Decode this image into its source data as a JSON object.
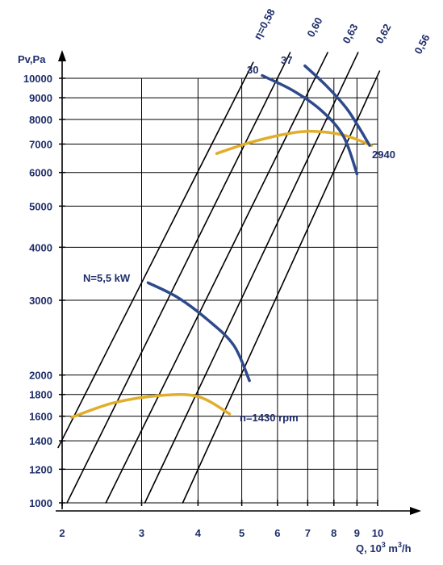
{
  "chart_data": {
    "type": "line",
    "title": "",
    "xlabel": "Q, 10",
    "xlabel_exp": "3",
    "xlabel_tail": " m",
    "xlabel_exp2": "3",
    "xlabel_end": "/h",
    "ylabel": "Pv,Pa",
    "x_scale": "log",
    "y_scale": "log",
    "xlim": [
      2,
      10
    ],
    "ylim": [
      1000,
      10000
    ],
    "x_ticks": [
      2,
      3,
      4,
      5,
      6,
      7,
      8,
      9,
      10
    ],
    "y_ticks": [
      1000,
      1200,
      1400,
      1600,
      1800,
      2000,
      3000,
      4000,
      5000,
      6000,
      7000,
      8000,
      9000,
      10000
    ],
    "grid": true,
    "efficiency_labels": [
      "η=0,58",
      "0,60",
      "0,63",
      "0,62",
      "0,56"
    ],
    "power_labels": {
      "high_30": "30",
      "high_37": "37",
      "low": "N=5,5 kW"
    },
    "speed_labels": {
      "high": "2940",
      "low": "n=1430 rpm"
    },
    "colors": {
      "axis": "#000000",
      "grid": "#000000",
      "power_curve": "#2e4a8c",
      "pressure_curve": "#e0ae2a",
      "text": "#1f2e6b"
    },
    "series": [
      {
        "name": "",
        "kind": "pressure",
        "points": [
          [
            4.4,
            6650
          ],
          [
            5.2,
            7050
          ],
          [
            6.3,
            7400
          ],
          [
            7.2,
            7500
          ],
          [
            8.4,
            7350
          ],
          [
            9.7,
            6950
          ]
        ]
      },
      {
        "name": "",
        "kind": "pressure",
        "points": [
          [
            2.1,
            1590
          ],
          [
            2.6,
            1720
          ],
          [
            3.3,
            1790
          ],
          [
            4.0,
            1780
          ],
          [
            4.7,
            1620
          ]
        ]
      },
      {
        "name": "",
        "kind": "power",
        "points": [
          [
            5.55,
            10150
          ],
          [
            6.5,
            9350
          ],
          [
            7.5,
            8400
          ],
          [
            8.4,
            7300
          ],
          [
            9.0,
            5950
          ]
        ]
      },
      {
        "name": "",
        "kind": "power",
        "points": [
          [
            6.9,
            10700
          ],
          [
            7.7,
            9600
          ],
          [
            8.6,
            8400
          ],
          [
            9.6,
            6950
          ]
        ]
      },
      {
        "name": "",
        "kind": "power",
        "points": [
          [
            3.1,
            3300
          ],
          [
            3.6,
            3050
          ],
          [
            4.2,
            2700
          ],
          [
            4.8,
            2350
          ],
          [
            5.2,
            1940
          ]
        ]
      },
      {
        "name": "",
        "kind": "efficiency",
        "points": [
          [
            1.96,
            1350
          ],
          [
            5.3,
            10900
          ]
        ]
      },
      {
        "name": "",
        "kind": "efficiency",
        "points": [
          [
            2.05,
            1000
          ],
          [
            6.4,
            11500
          ]
        ]
      },
      {
        "name": "",
        "kind": "efficiency",
        "points": [
          [
            2.5,
            1000
          ],
          [
            7.75,
            11500
          ]
        ]
      },
      {
        "name": "",
        "kind": "efficiency",
        "points": [
          [
            3.05,
            1000
          ],
          [
            9.05,
            11500
          ]
        ]
      },
      {
        "name": "",
        "kind": "efficiency",
        "points": [
          [
            3.7,
            1000
          ],
          [
            10.1,
            10400
          ]
        ]
      }
    ]
  }
}
